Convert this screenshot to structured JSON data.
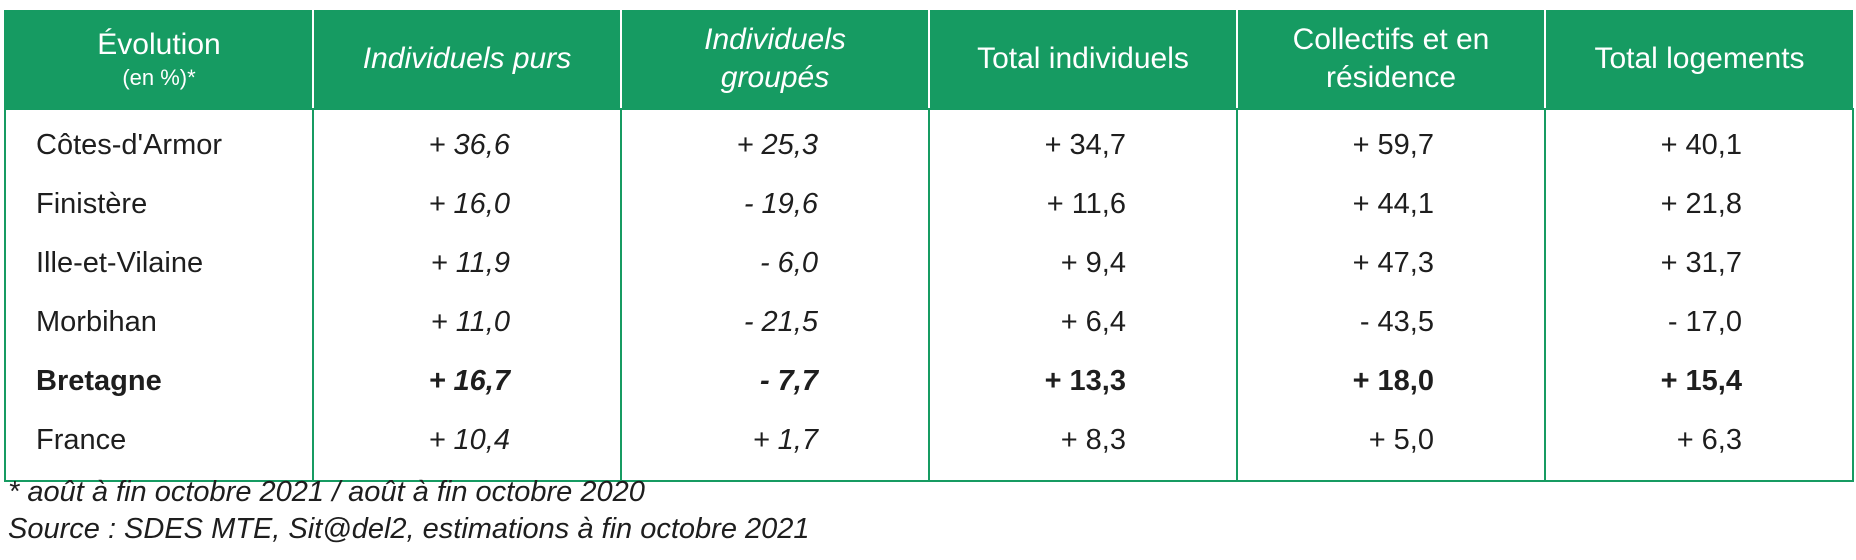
{
  "table": {
    "headers": [
      {
        "line1": "Évolution",
        "line2": "(en %)*",
        "italic": false
      },
      {
        "line1": "Individuels purs",
        "line2": "",
        "italic": true
      },
      {
        "line1": "Individuels",
        "line2": "groupés",
        "italic": true
      },
      {
        "line1": "Total individuels",
        "line2": "",
        "italic": false
      },
      {
        "line1": "Collectifs et en",
        "line2": "résidence",
        "italic": false
      },
      {
        "line1": "Total logements",
        "line2": "",
        "italic": false
      }
    ],
    "rows": [
      {
        "label": "Côtes-d'Armor",
        "values": [
          "+ 36,6",
          "+ 25,3",
          "+ 34,7",
          "+ 59,7",
          "+ 40,1"
        ],
        "bold": false
      },
      {
        "label": "Finistère",
        "values": [
          "+ 16,0",
          "- 19,6",
          "+ 11,6",
          "+ 44,1",
          "+ 21,8"
        ],
        "bold": false
      },
      {
        "label": "Ille-et-Vilaine",
        "values": [
          "+ 11,9",
          "- 6,0",
          "+ 9,4",
          "+ 47,3",
          "+ 31,7"
        ],
        "bold": false
      },
      {
        "label": "Morbihan",
        "values": [
          "+ 11,0",
          "- 21,5",
          "+ 6,4",
          "- 43,5",
          "- 17,0"
        ],
        "bold": false
      },
      {
        "label": "Bretagne",
        "values": [
          "+ 16,7",
          "- 7,7",
          "+ 13,3",
          "+ 18,0",
          "+ 15,4"
        ],
        "bold": true
      },
      {
        "label": "France",
        "values": [
          "+ 10,4",
          "+ 1,7",
          "+ 8,3",
          "+ 5,0",
          "+ 6,3"
        ],
        "bold": false
      }
    ]
  },
  "notes": {
    "footnote": "* août à fin octobre 2021 / août à fin octobre 2020",
    "source": "Source : SDES MTE, Sit@del2, estimations à fin octobre 2021"
  },
  "colors": {
    "header_bg": "#169b62",
    "border": "#169b62"
  }
}
